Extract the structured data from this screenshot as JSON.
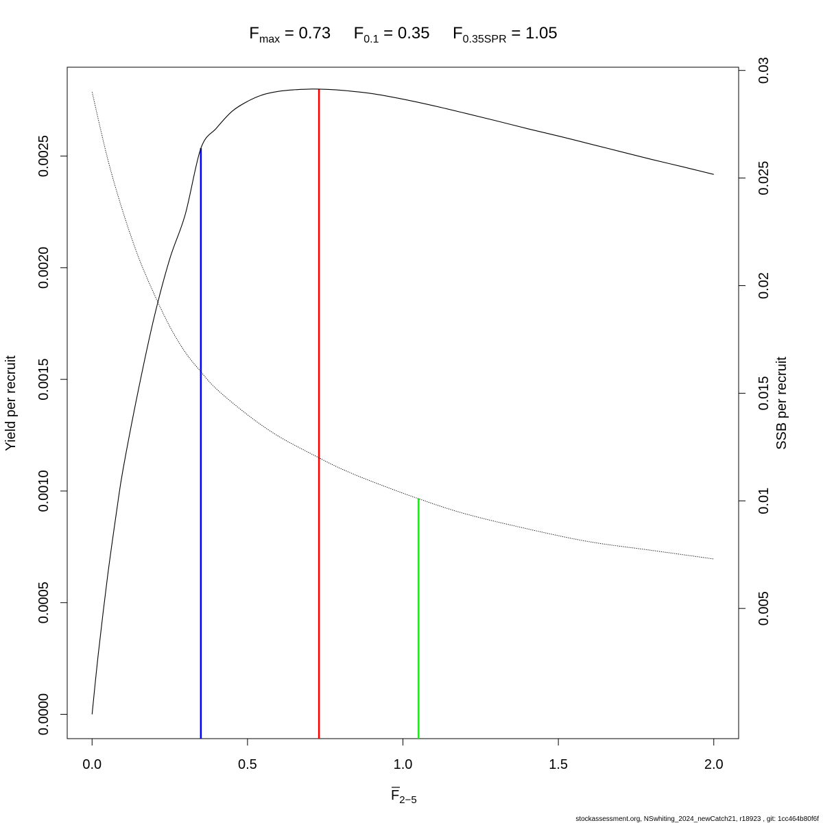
{
  "chart_data": {
    "type": "line",
    "title": {
      "fmax": {
        "base": "F",
        "sub": "max",
        "value": "0.73"
      },
      "f01": {
        "base": "F",
        "sub": "0.1",
        "value": "0.35"
      },
      "f035spr": {
        "base": "F",
        "sub": "0.35SPR",
        "value": "1.05"
      }
    },
    "xlabel": {
      "base": "F",
      "sub": "2−5",
      "overline": true
    },
    "ylabel_left": "Yield per recruit",
    "ylabel_right": "SSB per recruit",
    "xlim": [
      -0.08,
      2.08
    ],
    "ylim_left": [
      -0.000109,
      0.002898
    ],
    "ylim_right": [
      -0.00105,
      0.03015
    ],
    "x_ticks": [
      {
        "value": 0.0,
        "label": "0.0"
      },
      {
        "value": 0.5,
        "label": "0.5"
      },
      {
        "value": 1.0,
        "label": "1.0"
      },
      {
        "value": 1.5,
        "label": "1.5"
      },
      {
        "value": 2.0,
        "label": "2.0"
      }
    ],
    "y_left_ticks": [
      {
        "value": 0.0,
        "label": "0.0000"
      },
      {
        "value": 0.0005,
        "label": "0.0005"
      },
      {
        "value": 0.001,
        "label": "0.0010"
      },
      {
        "value": 0.0015,
        "label": "0.0015"
      },
      {
        "value": 0.002,
        "label": "0.0020"
      },
      {
        "value": 0.0025,
        "label": "0.0025"
      }
    ],
    "y_right_ticks": [
      {
        "value": 0.005,
        "label": "0.005"
      },
      {
        "value": 0.01,
        "label": "0.01"
      },
      {
        "value": 0.015,
        "label": "0.015"
      },
      {
        "value": 0.02,
        "label": "0.02"
      },
      {
        "value": 0.025,
        "label": "0.025"
      },
      {
        "value": 0.03,
        "label": "0.03"
      }
    ],
    "series": [
      {
        "axis": "left",
        "style": "solid",
        "color": "#000000",
        "x": [
          0.0,
          0.02,
          0.05,
          0.08,
          0.1,
          0.15,
          0.2,
          0.25,
          0.3,
          0.35,
          0.4,
          0.45,
          0.5,
          0.55,
          0.6,
          0.65,
          0.7,
          0.73,
          0.8,
          0.9,
          1.0,
          1.1,
          1.2,
          1.3,
          1.4,
          1.5,
          1.6,
          1.7,
          1.8,
          1.9,
          2.0
        ],
        "y": [
          0.0,
          0.00027,
          0.00062,
          0.00092,
          0.0011,
          0.00146,
          0.00178,
          0.00204,
          0.00224,
          0.002535,
          0.002625,
          0.0027,
          0.002745,
          0.002775,
          0.00279,
          0.002797,
          0.0028,
          0.0028,
          0.002795,
          0.00278,
          0.002755,
          0.002725,
          0.002692,
          0.002658,
          0.002623,
          0.00259,
          0.002555,
          0.00252,
          0.002485,
          0.002452,
          0.002418
        ]
      },
      {
        "axis": "right",
        "style": "dotted",
        "color": "#000000",
        "x": [
          0.0,
          0.05,
          0.1,
          0.15,
          0.2,
          0.25,
          0.3,
          0.35,
          0.4,
          0.5,
          0.6,
          0.73,
          0.8,
          0.9,
          1.05,
          1.2,
          1.4,
          1.6,
          1.8,
          2.0
        ],
        "y": [
          0.029,
          0.0259,
          0.0234,
          0.0213,
          0.0196,
          0.0181,
          0.0169,
          0.016,
          0.0152,
          0.014,
          0.013,
          0.012,
          0.0115,
          0.0109,
          0.0101,
          0.0094,
          0.0087,
          0.0081,
          0.0077,
          0.0073
        ]
      }
    ],
    "reference_lines": [
      {
        "name": "F0.1",
        "x": 0.35,
        "axis": "left",
        "y_top": 0.002535,
        "color": "#0000ff"
      },
      {
        "name": "Fmax",
        "x": 0.73,
        "axis": "left",
        "y_top": 0.0028,
        "color": "#ff0000"
      },
      {
        "name": "F0.35SPR",
        "x": 1.05,
        "axis": "right",
        "y_top": 0.0101,
        "color": "#00ff00"
      }
    ],
    "grid": false,
    "legend": "none"
  },
  "footer": "stockassessment.org, NSwhiting_2024_newCatch21, r18923 , git: 1cc464b80f6f"
}
